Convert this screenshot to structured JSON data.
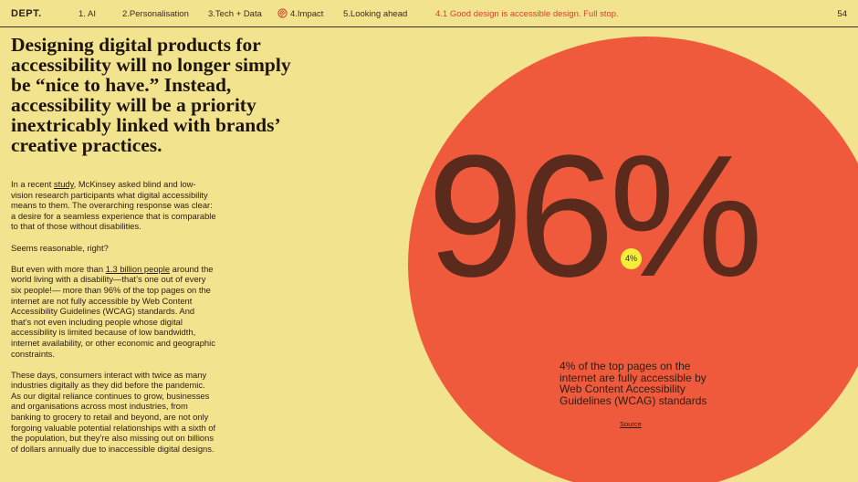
{
  "header": {
    "logo": "DEPT.",
    "nav": [
      {
        "label": "1. AI"
      },
      {
        "label": "2.Personalisation"
      },
      {
        "label": "3.Tech + Data"
      },
      {
        "label": "4.Impact"
      },
      {
        "label": "5.Looking ahead"
      }
    ],
    "active_section": "4.1 Good design is accessible design. Full stop.",
    "page_number": "54"
  },
  "headline": "Designing digital products for accessibility will no longer simply be “nice to have.” Instead, accessibility will be a priority inextricably linked with brands’ creative practices.",
  "body": {
    "p1_pre": "In a recent ",
    "p1_link": "study",
    "p1_post": ", McKinsey asked blind and low-vision research participants what digital accessibility means to them. The overarching response was clear: a desire for a seamless experience that is comparable to that of those without disabilities.",
    "p2": "Seems reasonable, right?",
    "p3_pre": "But even with more than ",
    "p3_link": "1.3 billion people",
    "p3_post": " around the world living with a disability—that’s one out of every six people!— more than 96% of the top pages on the internet are not fully accessible by Web Content Accessibility Guidelines (WCAG) standards. And that’s not even including people whose digital accessibility is limited because of low bandwidth, internet availability, or other economic and geographic constraints.",
    "p4": "These days, consumers interact with twice as many industries digitally as they did before the pandemic. As our digital reliance continues to grow, businesses and organisations across most industries, from banking to grocery to retail and beyond, are not only forgoing valuable potential relationships with a sixth of the population, but they’re also missing out on billions of dollars annually due to inaccessible digital designs."
  },
  "stat": {
    "big_number": "96%",
    "dot_label": "4%",
    "description": "4% of the top pages on the internet are fully accessible by Web Content Accessibility Guidelines (WCAG) standards",
    "source_label": "Source"
  },
  "colors": {
    "background": "#f2e48e",
    "circle": "#ef5a3c",
    "accent": "#d9402a",
    "dot": "#f4ee3a"
  }
}
